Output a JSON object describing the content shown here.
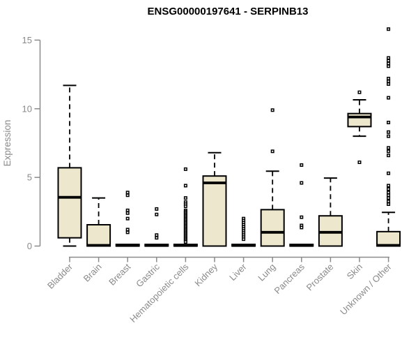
{
  "title": "ENSG00000197641 - SERPINB13",
  "chart_data": {
    "type": "boxplot",
    "title": "ENSG00000197641 - SERPINB13",
    "xlabel": "",
    "ylabel": "Expression",
    "ylim": [
      0,
      15
    ],
    "yticks": [
      0,
      5,
      10,
      15
    ],
    "grid": false,
    "legend": "none",
    "colors": {
      "box_fill": "#EDE8CD",
      "box_stroke": "#000000",
      "median": "#000000",
      "outlier": "#000000",
      "axis": "#8A8A8A",
      "title": "#000000",
      "background": "#FFFFFF"
    },
    "categories": [
      "Bladder",
      "Brain",
      "Breast",
      "Gastric",
      "Hematopoietic cells",
      "Kidney",
      "Liver",
      "Lung",
      "Pancreas",
      "Prostate",
      "Skin",
      "Unknown / Other"
    ],
    "boxes": [
      {
        "category": "Bladder",
        "low": 0,
        "q1": 0.6,
        "median": 3.55,
        "q3": 5.7,
        "high": 11.7,
        "outliers": []
      },
      {
        "category": "Brain",
        "low": 0,
        "q1": 0,
        "median": 0.05,
        "q3": 1.55,
        "high": 3.5,
        "outliers": []
      },
      {
        "category": "Breast",
        "low": 0,
        "q1": 0,
        "median": 0.04,
        "q3": 0.12,
        "high": 0.12,
        "outliers": [
          3.9,
          3.7,
          2.6,
          2.4,
          2.0,
          1.2,
          1.0
        ]
      },
      {
        "category": "Gastric",
        "low": 0,
        "q1": 0,
        "median": 0.04,
        "q3": 0.12,
        "high": 0.12,
        "outliers": [
          2.7,
          2.3,
          0.8,
          0.6
        ]
      },
      {
        "category": "Hematopoietic cells",
        "low": 0,
        "q1": 0,
        "median": 0.04,
        "q3": 0.12,
        "high": 0.12,
        "outliers": [
          5.6,
          4.4,
          3.5,
          3.2,
          3.05,
          2.9,
          2.6,
          2.5,
          2.4,
          2.3,
          2.2,
          2.1,
          2.0,
          1.9,
          1.8,
          1.7,
          1.6,
          1.5,
          1.4,
          1.3,
          1.2,
          1.1,
          1.0,
          0.9,
          0.8,
          0.7,
          0.6,
          0.5,
          0.4,
          0.3
        ]
      },
      {
        "category": "Kidney",
        "low": 0,
        "q1": 0,
        "median": 4.6,
        "q3": 5.1,
        "high": 6.8,
        "outliers": []
      },
      {
        "category": "Liver",
        "low": 0,
        "q1": 0,
        "median": 0.04,
        "q3": 0.12,
        "high": 0.12,
        "outliers": [
          2.0,
          1.85,
          1.7,
          1.55,
          1.4,
          1.25,
          1.1,
          0.95,
          0.8,
          0.65,
          0.5
        ]
      },
      {
        "category": "Lung",
        "low": 0,
        "q1": 0,
        "median": 1.0,
        "q3": 2.65,
        "high": 5.45,
        "outliers": [
          9.9,
          6.9
        ]
      },
      {
        "category": "Pancreas",
        "low": 0,
        "q1": 0,
        "median": 0.04,
        "q3": 0.12,
        "high": 0.12,
        "outliers": [
          5.9,
          4.6,
          2.1,
          1.5,
          1.35
        ]
      },
      {
        "category": "Prostate",
        "low": 0,
        "q1": 0,
        "median": 1.0,
        "q3": 2.2,
        "high": 4.95,
        "outliers": []
      },
      {
        "category": "Skin",
        "low": 8.0,
        "q1": 8.7,
        "median": 9.4,
        "q3": 9.65,
        "high": 10.65,
        "outliers": [
          11.2,
          6.1
        ]
      },
      {
        "category": "Unknown / Other",
        "low": 0,
        "q1": 0,
        "median": 0.05,
        "q3": 1.05,
        "high": 2.45,
        "outliers": [
          15.8,
          13.7,
          13.5,
          13.3,
          13.1,
          12.2,
          12.0,
          11.8,
          10.8,
          9.0,
          8.3,
          8.0,
          7.15,
          6.9,
          6.6,
          5.3,
          4.4,
          4.15,
          3.9,
          3.7,
          3.5,
          3.25,
          3.05
        ]
      }
    ]
  }
}
